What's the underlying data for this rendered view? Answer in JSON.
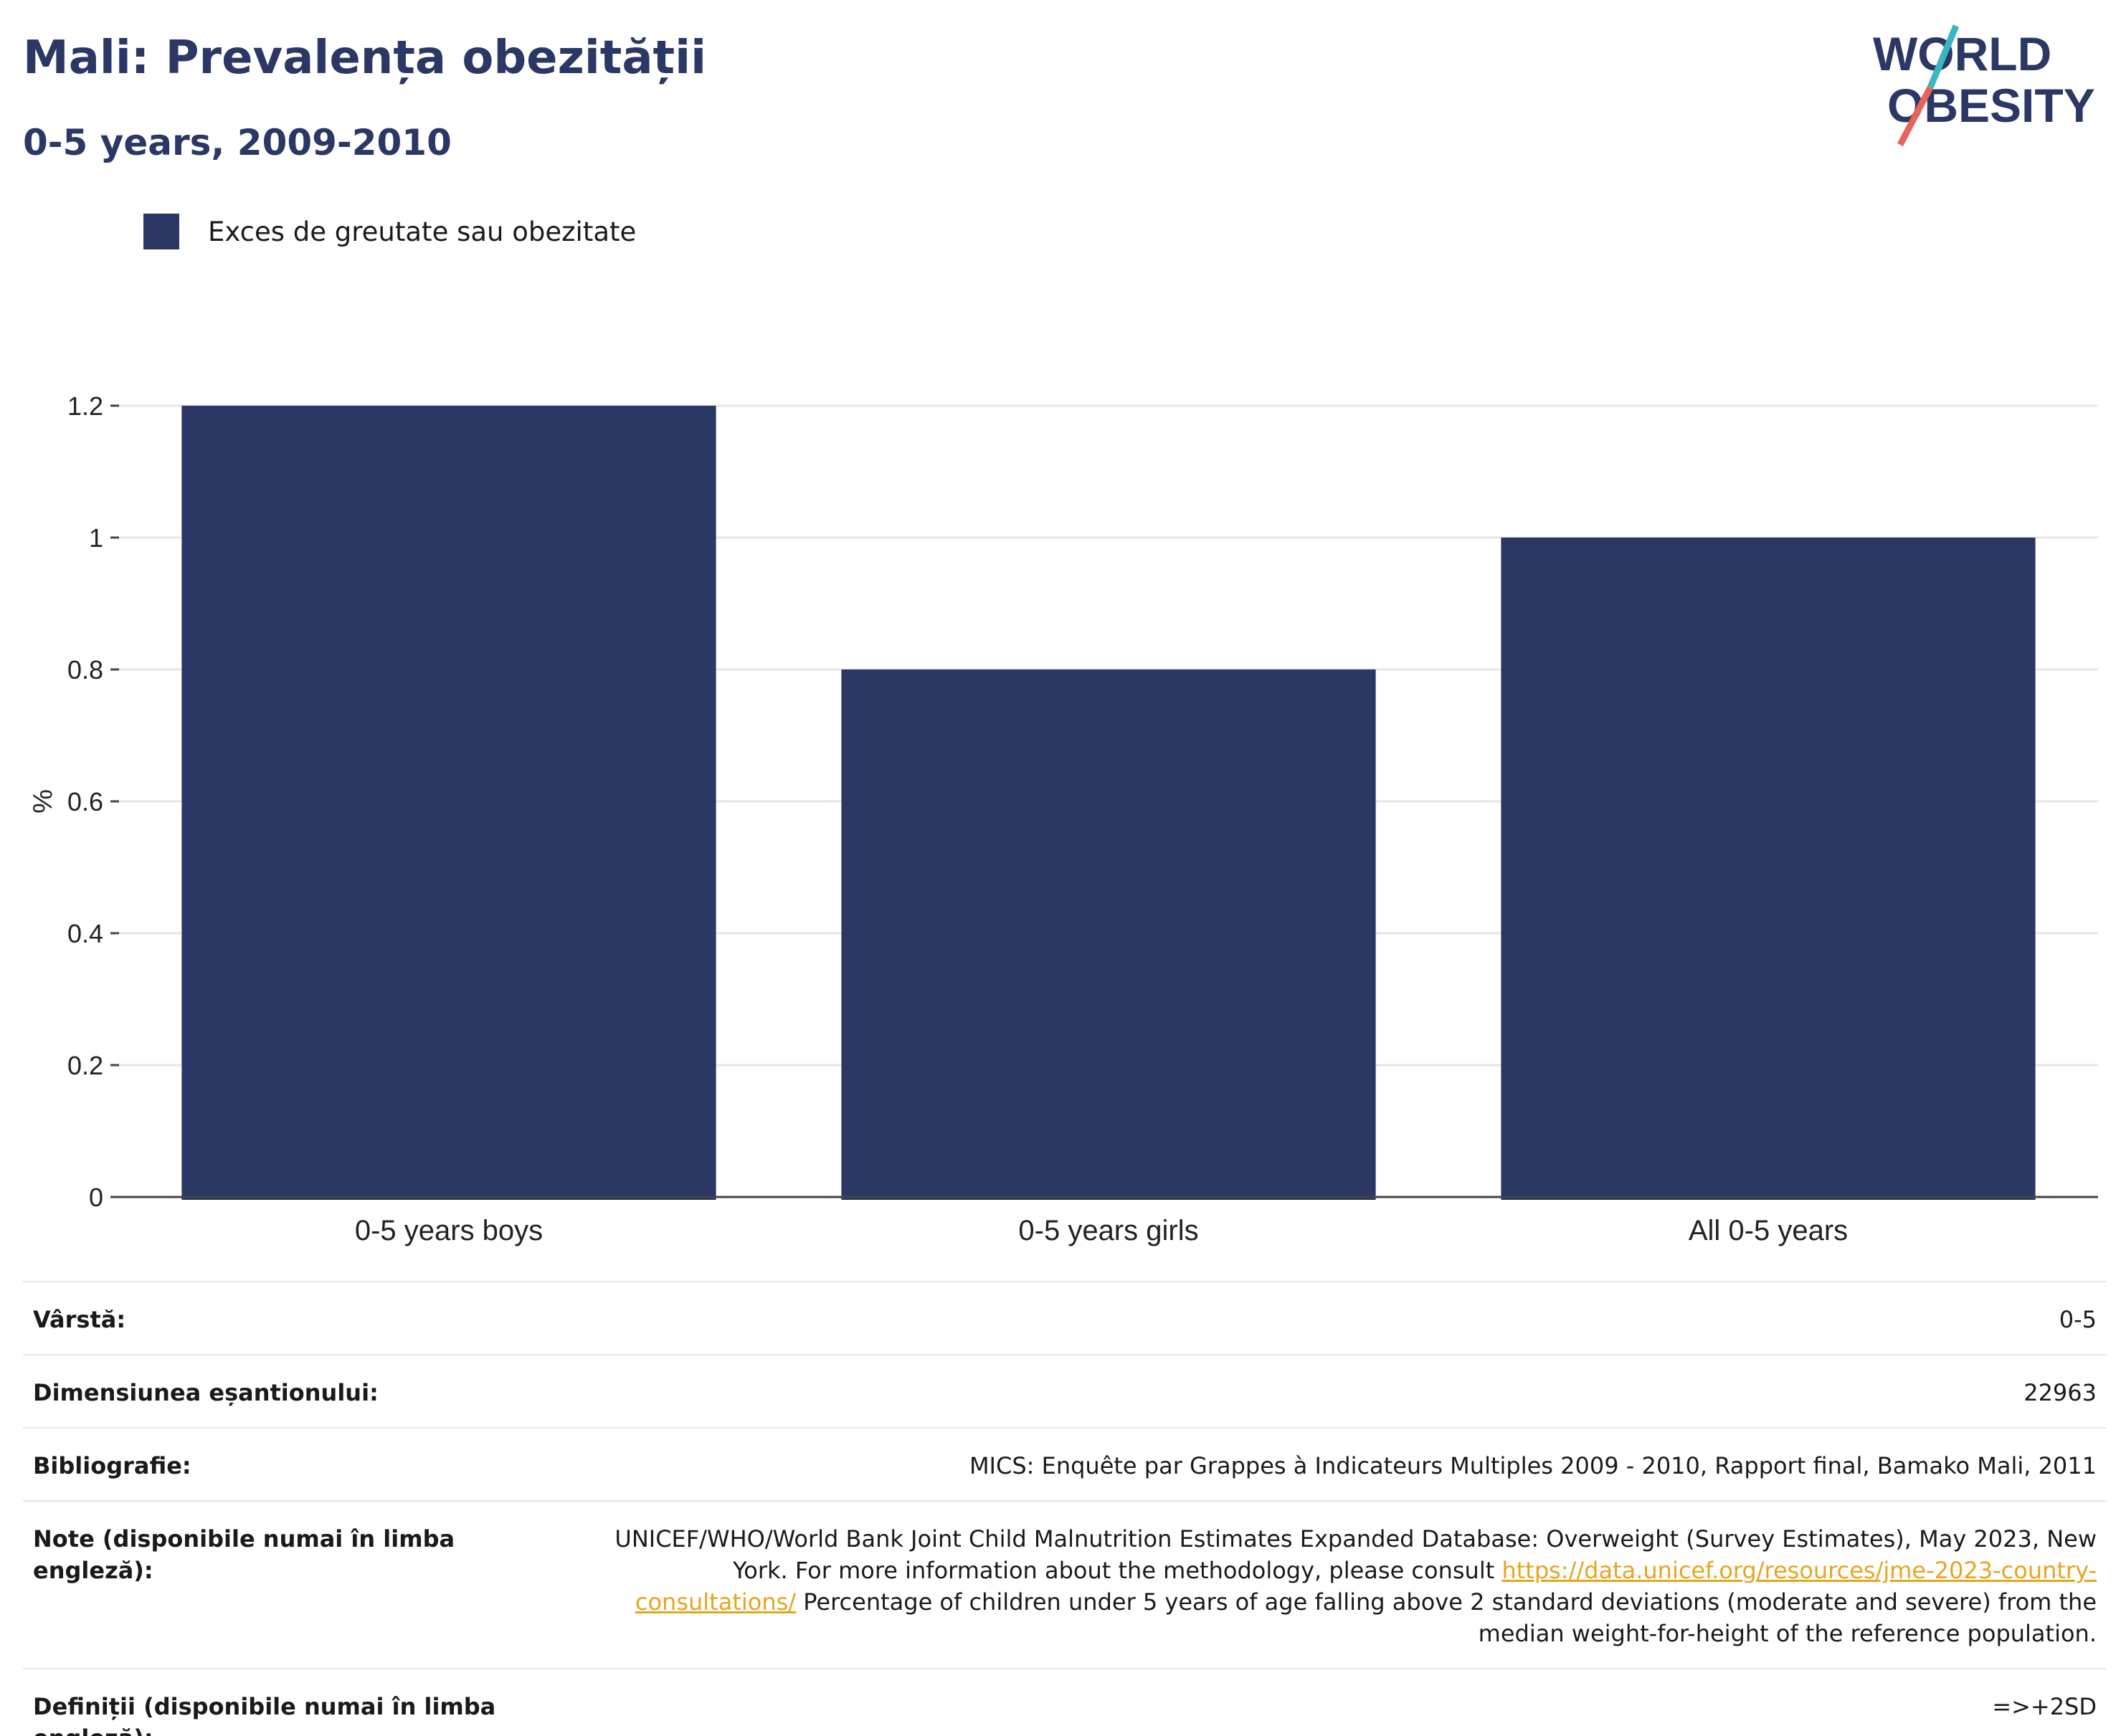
{
  "header": {
    "title": "Mali: Prevalența obezității",
    "subtitle": "0-5 years, 2009-2010"
  },
  "logo": {
    "line1": "WORLD",
    "line2": "OBESITY",
    "colors": {
      "text": "#2b3764",
      "slash_top": "#3ab5c1",
      "slash_bottom": "#e8645a"
    }
  },
  "legend": {
    "items": [
      {
        "label": "Exces de greutate sau obezitate",
        "color": "#2b3764"
      }
    ]
  },
  "chart_data": {
    "type": "bar",
    "categories": [
      "0-5 years boys",
      "0-5 years girls",
      "All 0-5 years"
    ],
    "series": [
      {
        "name": "Exces de greutate sau obezitate",
        "values": [
          1.2,
          0.8,
          1.0
        ],
        "color": "#2b3764"
      }
    ],
    "ylabel": "%",
    "xlabel": "",
    "ylim": [
      0,
      1.2
    ],
    "yticks": [
      0,
      0.2,
      0.4,
      0.6,
      0.8,
      1,
      1.2
    ],
    "ytick_labels": [
      "0",
      "0.2",
      "0.4",
      "0.6",
      "0.8",
      "1",
      "1.2"
    ],
    "grid": true
  },
  "info": {
    "age": {
      "label": "Vârstă:",
      "value": "0-5"
    },
    "sample": {
      "label": "Dimensiunea eșantionului:",
      "value": "22963"
    },
    "bibliography": {
      "label": "Bibliografie:",
      "value": "MICS: Enquête par Grappes à Indicateurs Multiples 2009 - 2010, Rapport final, Bamako Mali, 2011"
    },
    "notes": {
      "label": "Note (disponibile numai în limba engleză):",
      "text_before": "UNICEF/WHO/World Bank Joint Child Malnutrition Estimates Expanded Database: Overweight (Survey Estimates), May 2023, New York. For more information about the methodology, please consult ",
      "link": "https://data.unicef.org/resources/jme-2023-country-consultations/",
      "text_after": " Percentage of children under 5 years of age falling above 2 standard deviations (moderate and severe) from the median weight-for-height of the reference population."
    },
    "definitions": {
      "label": "Definiții (disponibile numai în limba engleză):",
      "value": "=>+2SD"
    }
  }
}
